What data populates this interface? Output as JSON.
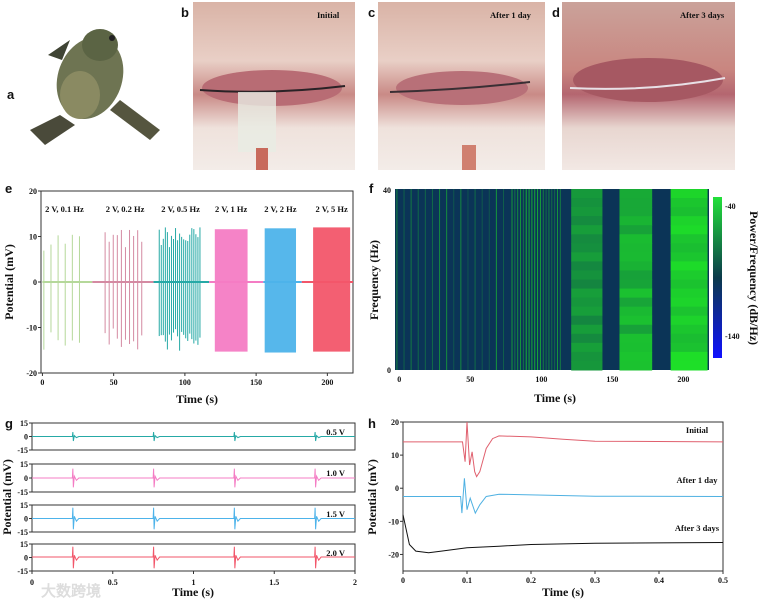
{
  "panels": {
    "a": {
      "label": "a"
    },
    "b": {
      "label": "b",
      "caption": "Initial"
    },
    "c": {
      "label": "c",
      "caption": "After 1 day"
    },
    "d": {
      "label": "d",
      "caption": "After 3 days"
    },
    "e": {
      "label": "e"
    },
    "f": {
      "label": "f"
    },
    "g": {
      "label": "g"
    },
    "h": {
      "label": "h"
    }
  },
  "watermark": "大数跨境",
  "colors": {
    "green_light": "#b5d89a",
    "mauve": "#d48aa2",
    "teal": "#26a9a6",
    "pink": "#f47cc4",
    "blue": "#4db3ea",
    "red": "#f2566a",
    "black": "#111111"
  },
  "chart_data": [
    {
      "id": "e",
      "type": "line",
      "xlabel": "Time (s)",
      "ylabel": "Potential (mV)",
      "xlim": [
        -1,
        218
      ],
      "ylim": [
        -20,
        20
      ],
      "xticks": [
        0,
        50,
        100,
        150,
        200
      ],
      "yticks": [
        -20,
        -10,
        0,
        10,
        20
      ],
      "series": [
        {
          "name": "2 V, 0.1 Hz",
          "start": 0,
          "end": 35,
          "freq": 0.2,
          "color": "#b5d89a",
          "max": 11.5,
          "min": -15.3
        },
        {
          "name": "2 V, 0.2 Hz",
          "start": 35,
          "end": 78,
          "freq": 0.35,
          "color": "#d48aa2",
          "max": 11.8,
          "min": -15.3
        },
        {
          "name": "2 V, 0.5 Hz",
          "start": 78,
          "end": 117,
          "freq": 0.7,
          "color": "#26a9a6",
          "max": 12.3,
          "min": -15.5
        },
        {
          "name": "2 V, 1 Hz",
          "start": 117,
          "end": 155,
          "freq": 1,
          "color": "#f47cc4",
          "max": 11.6,
          "min": -15.3
        },
        {
          "name": "2 V, 2 Hz",
          "start": 155,
          "end": 182,
          "freq": 2,
          "color": "#4db3ea",
          "max": 11.8,
          "min": -15.5
        },
        {
          "name": "2 V, 5 Hz",
          "start": 182,
          "end": 218,
          "freq": 5,
          "color": "#f2566a",
          "max": 12,
          "min": -15.3
        }
      ],
      "bursts": [
        [
          1,
          30
        ],
        [
          44,
          72
        ],
        [
          82,
          112
        ],
        [
          121,
          144
        ],
        [
          156,
          178
        ],
        [
          190,
          216
        ]
      ]
    },
    {
      "id": "f",
      "type": "heatmap",
      "xlabel": "Time (s)",
      "ylabel": "Frequency (Hz)",
      "xlim": [
        -3,
        218
      ],
      "ylim": [
        0,
        40
      ],
      "xticks": [
        0,
        50,
        100,
        150,
        200
      ],
      "yticks": [
        0,
        40
      ],
      "colorbar": {
        "label": "Power/Frequency (dB/Hz)",
        "ticks": [
          -40,
          -140
        ],
        "range": [
          -150,
          -35
        ]
      },
      "segments": [
        {
          "start": -3,
          "end": 78,
          "level": 0.15,
          "pulse_period": 5
        },
        {
          "start": 78,
          "end": 115,
          "level": 0.3,
          "pulse_period": 2
        },
        {
          "start": 115,
          "end": 121,
          "level": 0.05
        },
        {
          "start": 121,
          "end": 143,
          "level": 0.6
        },
        {
          "start": 143,
          "end": 155,
          "level": 0.05
        },
        {
          "start": 155,
          "end": 178,
          "level": 0.8
        },
        {
          "start": 178,
          "end": 191,
          "level": 0.05
        },
        {
          "start": 191,
          "end": 217,
          "level": 0.95
        }
      ]
    },
    {
      "id": "g",
      "type": "line",
      "xlabel": "Time (s)",
      "ylabel": "Potential (mV)",
      "xlim": [
        0,
        2
      ],
      "ylim": [
        -15,
        15
      ],
      "xticks": [
        "0",
        "0.5",
        "1",
        "1.5",
        "2"
      ],
      "yticks": [
        15,
        0,
        -15
      ],
      "spike_times": [
        0.25,
        0.75,
        1.25,
        1.75
      ],
      "series": [
        {
          "name": "0.5 V",
          "color": "#26a9a6",
          "amplitude": 5,
          "baseline": 0
        },
        {
          "name": "1.0 V",
          "color": "#f47cc4",
          "amplitude": 10,
          "baseline": 0
        },
        {
          "name": "1.5 V",
          "color": "#4db3ea",
          "amplitude": 12,
          "baseline": 0
        },
        {
          "name": "2.0 V",
          "color": "#f2566a",
          "amplitude": 12,
          "baseline": 0.5
        }
      ]
    },
    {
      "id": "h",
      "type": "line",
      "xlabel": "Time (s)",
      "ylabel": "Potential (mV)",
      "xlim": [
        0,
        0.5
      ],
      "ylim": [
        -25,
        20
      ],
      "xticks": [
        "0",
        "0.1",
        "0.2",
        "0.3",
        "0.4",
        "0.5"
      ],
      "yticks": [
        20,
        10,
        0,
        -10,
        -20
      ],
      "series": [
        {
          "name": "Initial",
          "color": "#e0606e",
          "points": [
            [
              0,
              14
            ],
            [
              0.093,
              14
            ],
            [
              0.097,
              8
            ],
            [
              0.1,
              20
            ],
            [
              0.104,
              7
            ],
            [
              0.108,
              11
            ],
            [
              0.112,
              5
            ],
            [
              0.115,
              3.5
            ],
            [
              0.12,
              5
            ],
            [
              0.13,
              12
            ],
            [
              0.14,
              15
            ],
            [
              0.15,
              15.8
            ],
            [
              0.2,
              15.5
            ],
            [
              0.25,
              14.8
            ],
            [
              0.3,
              14.2
            ],
            [
              0.5,
              14
            ]
          ]
        },
        {
          "name": "After 1 day",
          "color": "#4fb1e2",
          "points": [
            [
              0,
              -2.5
            ],
            [
              0.09,
              -2.5
            ],
            [
              0.092,
              -7.5
            ],
            [
              0.096,
              3
            ],
            [
              0.1,
              -6.5
            ],
            [
              0.105,
              -3
            ],
            [
              0.113,
              -7.5
            ],
            [
              0.12,
              -5
            ],
            [
              0.13,
              -2.5
            ],
            [
              0.15,
              -1.8
            ],
            [
              0.3,
              -2.4
            ],
            [
              0.5,
              -2.5
            ]
          ]
        },
        {
          "name": "After 3 days",
          "color": "#111111",
          "points": [
            [
              0,
              -8
            ],
            [
              0.01,
              -17
            ],
            [
              0.02,
              -19
            ],
            [
              0.04,
              -19.5
            ],
            [
              0.06,
              -19
            ],
            [
              0.1,
              -18
            ],
            [
              0.15,
              -17.5
            ],
            [
              0.2,
              -17
            ],
            [
              0.3,
              -16.6
            ],
            [
              0.5,
              -16.4
            ]
          ]
        }
      ]
    }
  ]
}
